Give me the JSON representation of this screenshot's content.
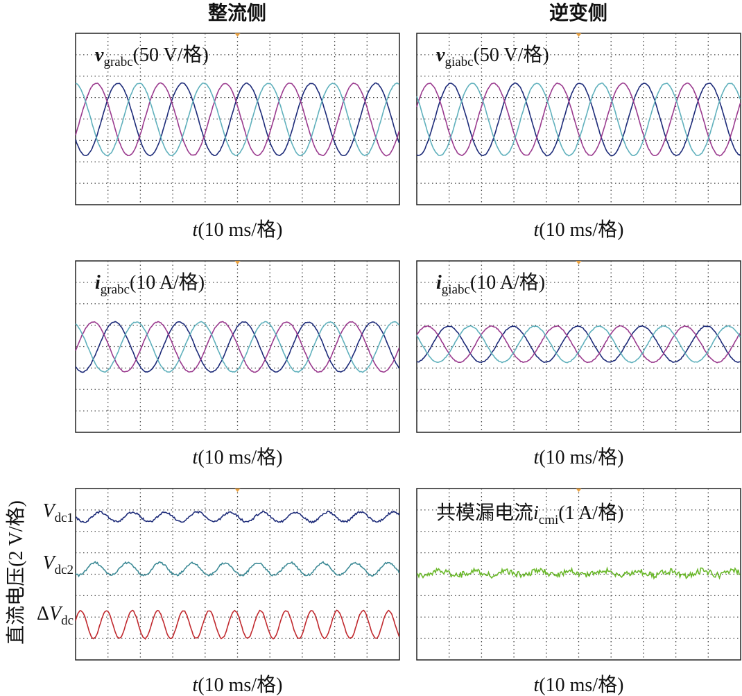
{
  "columns": [
    "整流侧",
    "逆变侧"
  ],
  "y_label": "直流电压(2 V/格)",
  "panels": [
    {
      "label": {
        "symbol": "v",
        "sub": "grabc",
        "unit": "(50 V/格)"
      },
      "x_label": {
        "symbol": "t",
        "unit": "(10 ms/格)"
      }
    },
    {
      "label": {
        "symbol": "v",
        "sub": "giabc",
        "unit": "(50 V/格)"
      },
      "x_label": {
        "symbol": "t",
        "unit": "(10 ms/格)"
      }
    },
    {
      "label": {
        "symbol": "i",
        "sub": "grabc",
        "unit": "(10 A/格)"
      },
      "x_label": {
        "symbol": "t",
        "unit": "(10 ms/格)"
      }
    },
    {
      "label": {
        "symbol": "i",
        "sub": "giabc",
        "unit": "(10 A/格)"
      },
      "x_label": {
        "symbol": "t",
        "unit": "(10 ms/格)"
      }
    },
    {
      "traces": [
        {
          "symbol": "V",
          "sub": "dc1"
        },
        {
          "symbol": "V",
          "sub": "dc2"
        },
        {
          "prefix": "Δ",
          "symbol": "V",
          "sub": "dc"
        }
      ],
      "x_label": {
        "symbol": "t",
        "unit": "(10 ms/格)"
      }
    },
    {
      "label": {
        "prefix": "共模漏电流",
        "symbol": "i",
        "sub": "cmi",
        "unit": "(1 A/格)"
      },
      "x_label": {
        "symbol": "t",
        "unit": "(10 ms/格)"
      }
    }
  ]
}
